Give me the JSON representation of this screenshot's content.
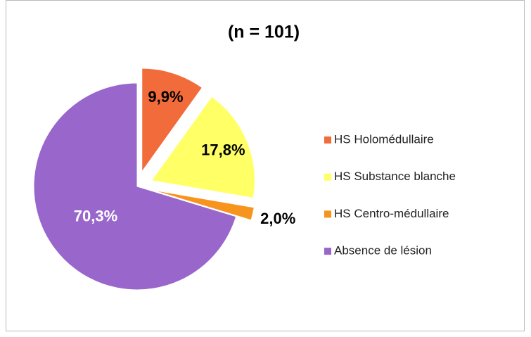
{
  "chart_data": {
    "type": "pie",
    "title": "(n = 101)",
    "categories": [
      "HS Holomédullaire",
      "HS Substance blanche",
      "HS Centro-médullaire",
      "Absence de lésion"
    ],
    "values": [
      9.9,
      17.8,
      2.0,
      70.3
    ],
    "value_labels": [
      "9,9%",
      "17,8%",
      "2,0%",
      "70,3%"
    ],
    "colors": [
      "#f26b3a",
      "#ffff66",
      "#f7941d",
      "#9966cc"
    ],
    "legend": "right"
  }
}
